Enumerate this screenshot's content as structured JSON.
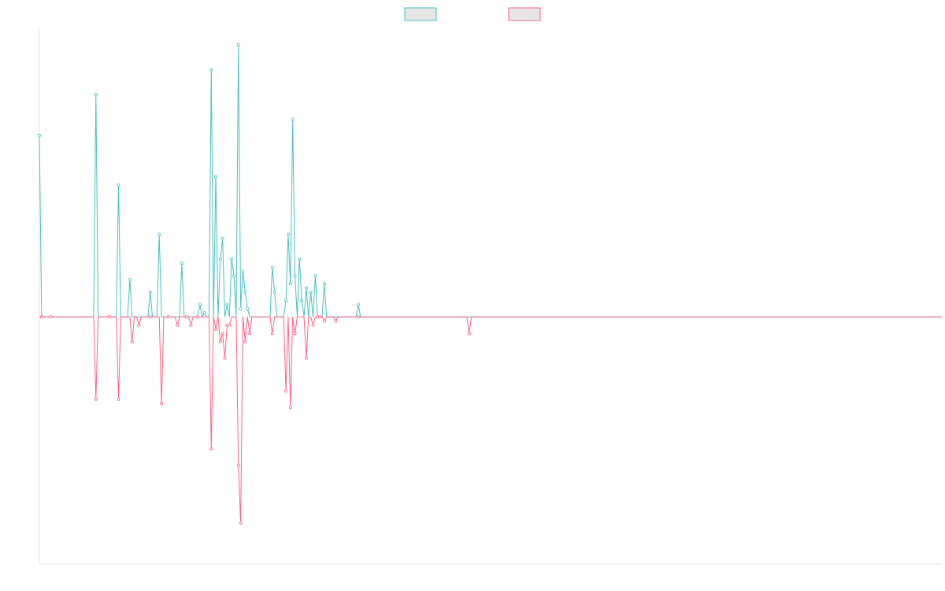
{
  "chart_data": {
    "type": "line",
    "title": "",
    "xlabel": "",
    "ylabel": "",
    "grid": false,
    "legend_position": "top",
    "x_count": 400,
    "ylim": [
      -30,
      35
    ],
    "series": [
      {
        "color": "#4bc0c0",
        "fill": "#e6e6e6",
        "sparse_values": [
          [
            0,
            22
          ],
          [
            25,
            27
          ],
          [
            35,
            16
          ],
          [
            40,
            4.5
          ],
          [
            49,
            3
          ],
          [
            53,
            10
          ],
          [
            63,
            6.5
          ],
          [
            71,
            1.5
          ],
          [
            73,
            0.5
          ],
          [
            76,
            30
          ],
          [
            78,
            17
          ],
          [
            80,
            7
          ],
          [
            81,
            9.5
          ],
          [
            83,
            1.5
          ],
          [
            85,
            7
          ],
          [
            86,
            5
          ],
          [
            88,
            33
          ],
          [
            89,
            1
          ],
          [
            90,
            5.5
          ],
          [
            91,
            3
          ],
          [
            92,
            1
          ],
          [
            103,
            6
          ],
          [
            104,
            3
          ],
          [
            109,
            2
          ],
          [
            110,
            10
          ],
          [
            111,
            4
          ],
          [
            112,
            24
          ],
          [
            113,
            5
          ],
          [
            115,
            7
          ],
          [
            116,
            2
          ],
          [
            118,
            3.5
          ],
          [
            120,
            3
          ],
          [
            122,
            5
          ],
          [
            126,
            4
          ],
          [
            141,
            1.5
          ]
        ]
      },
      {
        "color": "#ff6384",
        "fill": "#e6e6e6",
        "sparse_values": [
          [
            1,
            0
          ],
          [
            5,
            0
          ],
          [
            25,
            -10
          ],
          [
            31,
            0
          ],
          [
            35,
            -10
          ],
          [
            41,
            -3
          ],
          [
            44,
            -1
          ],
          [
            49,
            0
          ],
          [
            54,
            -10.5
          ],
          [
            57,
            0
          ],
          [
            61,
            -1
          ],
          [
            65,
            0
          ],
          [
            67,
            -1
          ],
          [
            70,
            0
          ],
          [
            76,
            -16
          ],
          [
            78,
            -1.5
          ],
          [
            80,
            -3
          ],
          [
            81,
            -2
          ],
          [
            82,
            -5
          ],
          [
            83,
            -1
          ],
          [
            84,
            -1
          ],
          [
            88,
            -18
          ],
          [
            89,
            -25
          ],
          [
            91,
            -3
          ],
          [
            93,
            -2
          ],
          [
            103,
            -2
          ],
          [
            109,
            -9
          ],
          [
            111,
            -11
          ],
          [
            113,
            -2
          ],
          [
            118,
            -5
          ],
          [
            121,
            -1
          ],
          [
            123,
            0
          ],
          [
            124,
            0
          ],
          [
            126,
            -0.5
          ],
          [
            131,
            -0.5
          ],
          [
            141,
            0
          ],
          [
            190,
            -2
          ]
        ]
      }
    ]
  }
}
